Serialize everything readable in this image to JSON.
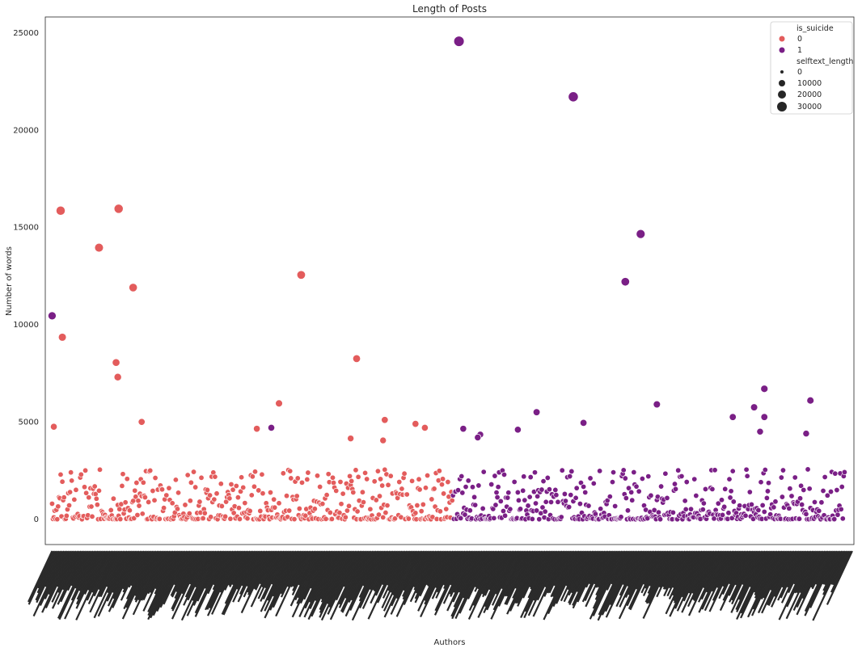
{
  "chart_data": {
    "type": "scatter",
    "title": "Length of Posts",
    "xlabel": "Authors",
    "ylabel": "Number of words",
    "ylim": [
      -1300,
      25800
    ],
    "yticks": [
      0,
      5000,
      10000,
      15000,
      20000,
      25000
    ],
    "grid": false,
    "legend_position": "top-right",
    "hue_title": "is_suicide",
    "size_title": "selftext_length",
    "hue_entries": [
      {
        "label": "0",
        "color": "#e35c5c"
      },
      {
        "label": "1",
        "color": "#7a1f86"
      }
    ],
    "size_entries": [
      "0",
      "10000",
      "20000",
      "30000"
    ],
    "x_categories_note": "Authors",
    "series": [
      {
        "name": "0",
        "color": "#e35c5c",
        "points": [
          {
            "x": 10,
            "y": 15850,
            "size": 15900
          },
          {
            "x": 78,
            "y": 15950,
            "size": 16000
          },
          {
            "x": 55,
            "y": 13950,
            "size": 14000
          },
          {
            "x": 95,
            "y": 11900,
            "size": 12000
          },
          {
            "x": 292,
            "y": 12550,
            "size": 12600
          },
          {
            "x": 12,
            "y": 9350,
            "size": 9400
          },
          {
            "x": 75,
            "y": 8050,
            "size": 8100
          },
          {
            "x": 77,
            "y": 7300,
            "size": 7400
          },
          {
            "x": 357,
            "y": 8250,
            "size": 8300
          },
          {
            "x": 2,
            "y": 4750,
            "size": 4800
          },
          {
            "x": 105,
            "y": 5000,
            "size": 5000
          },
          {
            "x": 266,
            "y": 5950,
            "size": 6000
          },
          {
            "x": 390,
            "y": 5100,
            "size": 5100
          },
          {
            "x": 426,
            "y": 4900,
            "size": 4900
          },
          {
            "x": 437,
            "y": 4700,
            "size": 4700
          },
          {
            "x": 240,
            "y": 4650,
            "size": 4700
          },
          {
            "x": 350,
            "y": 4150,
            "size": 4200
          },
          {
            "x": 388,
            "y": 4050,
            "size": 4100
          }
        ]
      },
      {
        "name": "1",
        "color": "#7a1f86",
        "points": [
          {
            "x": 477,
            "y": 24550,
            "size": 24600
          },
          {
            "x": 611,
            "y": 21700,
            "size": 21800
          },
          {
            "x": 690,
            "y": 14650,
            "size": 14700
          },
          {
            "x": 672,
            "y": 12200,
            "size": 12200
          },
          {
            "x": 0,
            "y": 10450,
            "size": 10500
          },
          {
            "x": 835,
            "y": 6700,
            "size": 6700
          },
          {
            "x": 889,
            "y": 6100,
            "size": 6100
          },
          {
            "x": 709,
            "y": 5900,
            "size": 5900
          },
          {
            "x": 823,
            "y": 5750,
            "size": 5800
          },
          {
            "x": 568,
            "y": 5500,
            "size": 5500
          },
          {
            "x": 798,
            "y": 5250,
            "size": 5300
          },
          {
            "x": 835,
            "y": 5250,
            "size": 5300
          },
          {
            "x": 623,
            "y": 4950,
            "size": 5000
          },
          {
            "x": 257,
            "y": 4700,
            "size": 4700
          },
          {
            "x": 482,
            "y": 4650,
            "size": 4700
          },
          {
            "x": 546,
            "y": 4600,
            "size": 4600
          },
          {
            "x": 830,
            "y": 4500,
            "size": 4500
          },
          {
            "x": 884,
            "y": 4400,
            "size": 4400
          },
          {
            "x": 502,
            "y": 4350,
            "size": 4400
          },
          {
            "x": 499,
            "y": 4200,
            "size": 4200
          }
        ]
      }
    ]
  }
}
